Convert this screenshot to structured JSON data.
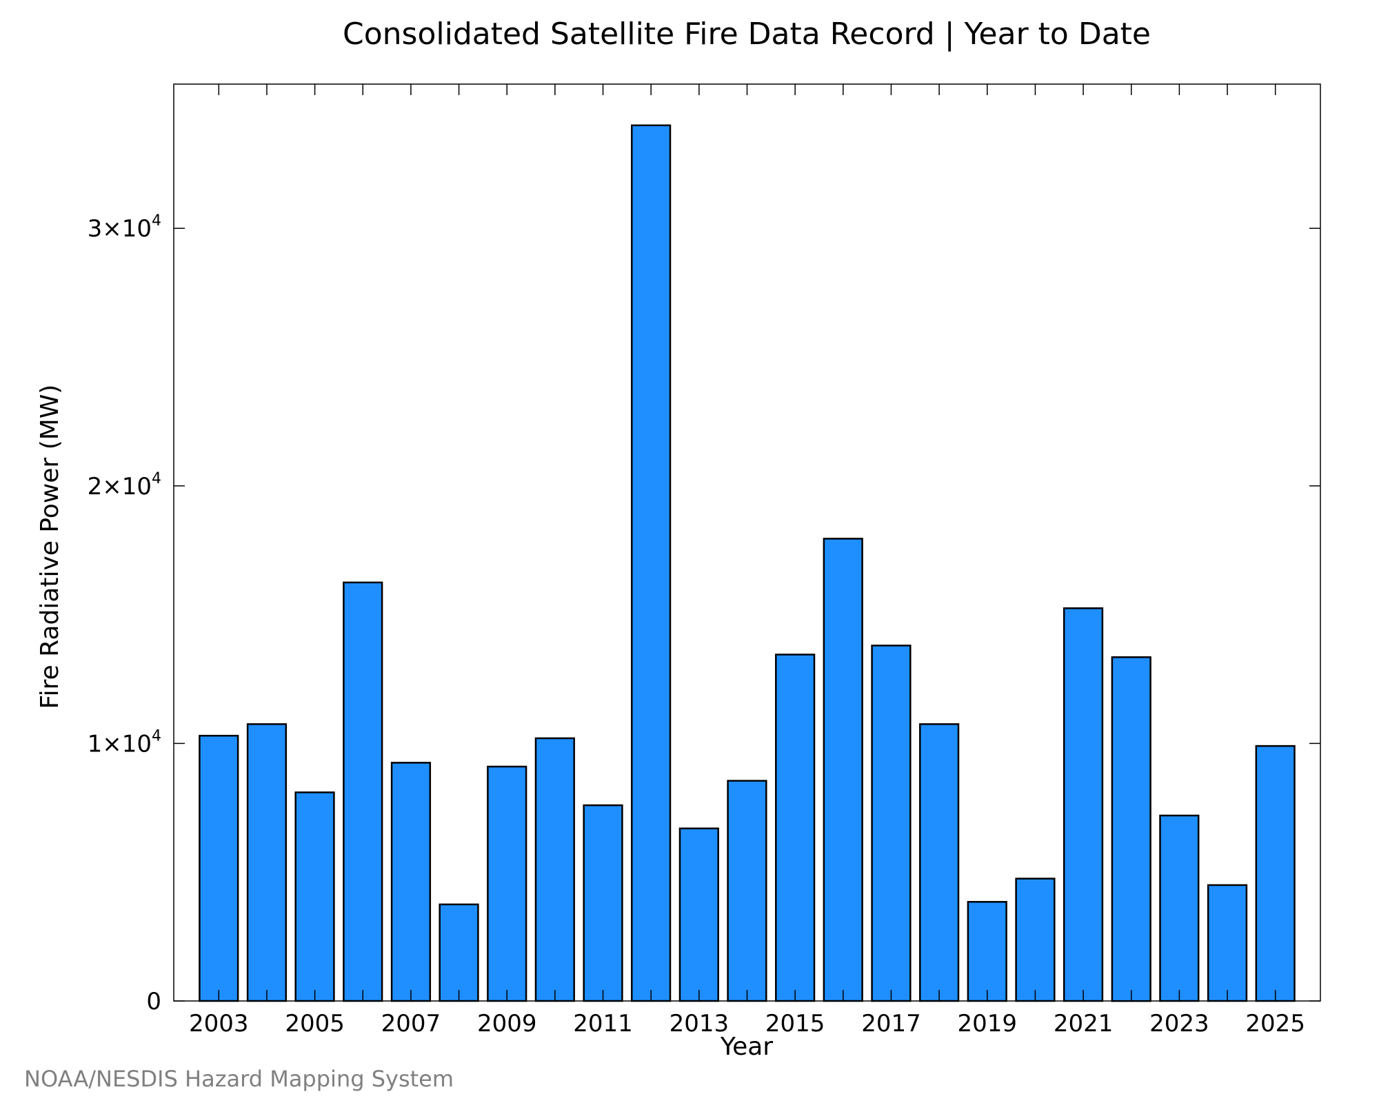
{
  "title": "Consolidated Satellite Fire Data Record | Year to Date",
  "credit": "NOAA/NESDIS Hazard Mapping System",
  "colors": {
    "bar_fill": "#1f8fff",
    "bar_stroke": "#000000",
    "credit": "#808080"
  },
  "chart_data": {
    "type": "bar",
    "title": "Consolidated Satellite Fire Data Record | Year to Date",
    "xlabel": "Year",
    "ylabel": "Fire Radiative Power (MW)",
    "categories": [
      "2003",
      "2004",
      "2005",
      "2006",
      "2007",
      "2008",
      "2009",
      "2010",
      "2011",
      "2012",
      "2013",
      "2014",
      "2015",
      "2016",
      "2017",
      "2018",
      "2019",
      "2020",
      "2021",
      "2022",
      "2023",
      "2024",
      "2025"
    ],
    "values": [
      10300,
      10750,
      8100,
      16250,
      9250,
      3750,
      9100,
      10200,
      7600,
      34000,
      6700,
      8550,
      13450,
      17950,
      13800,
      10750,
      3850,
      4750,
      15250,
      13350,
      7200,
      4500,
      9900
    ],
    "ylim": [
      0,
      35600
    ],
    "yticks": [
      {
        "value": 0,
        "label": "0"
      },
      {
        "value": 10000,
        "label": "1×10",
        "exp": "4"
      },
      {
        "value": 20000,
        "label": "2×10",
        "exp": "4"
      },
      {
        "value": 30000,
        "label": "3×10",
        "exp": "4"
      }
    ],
    "xticks": [
      "2003",
      "2005",
      "2007",
      "2009",
      "2011",
      "2013",
      "2015",
      "2017",
      "2019",
      "2021",
      "2023",
      "2025"
    ],
    "grid": false,
    "legend": "none"
  }
}
